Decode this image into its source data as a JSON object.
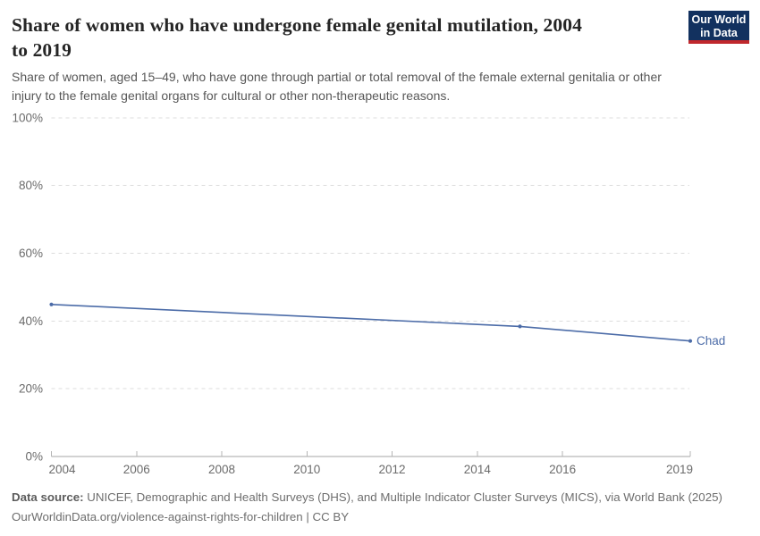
{
  "header": {
    "title_lines": [
      "Share of women who have undergone female genital mutilation, 2004",
      "to 2019"
    ],
    "subtitle_lines": [
      "Share of women, aged 15–49, who have gone through partial or total removal of the female external genitalia or other",
      "injury to the female genital organs for cultural or other non-therapeutic reasons."
    ]
  },
  "logo": {
    "line1": "Our World",
    "line2": "in Data",
    "bg_color": "#12315F",
    "stripe_color": "#C0282D"
  },
  "chart_data": {
    "type": "line",
    "title": "Share of women who have undergone female genital mutilation, 2004 to 2019",
    "series": [
      {
        "name": "Chad",
        "x": [
          2004,
          2015,
          2019
        ],
        "values": [
          44.9,
          38.4,
          34.1
        ]
      }
    ],
    "x_ticks": [
      "2004",
      "2006",
      "2008",
      "2010",
      "2012",
      "2014",
      "2016",
      "2019"
    ],
    "y_ticks": [
      "0%",
      "20%",
      "40%",
      "60%",
      "80%",
      "100%"
    ],
    "xlim": [
      2004,
      2019
    ],
    "ylim": [
      0,
      100
    ],
    "grid": "horizontal-dashed",
    "legend_position": "end-of-line-label",
    "line_color": "#4C6CA8",
    "entity_label_color": "#4C6CA8",
    "axis_color": "#a6a6a6",
    "gridline_color": "#dcdcdc",
    "tick_label_color": "#6b6b6b"
  },
  "footer": {
    "data_source_label": "Data source:",
    "data_source_text": " UNICEF, Demographic and Health Surveys (DHS), and Multiple Indicator Cluster Surveys (MICS), via World Bank (2025)",
    "link_line": "OurWorldinData.org/violence-against-rights-for-children | CC BY"
  }
}
